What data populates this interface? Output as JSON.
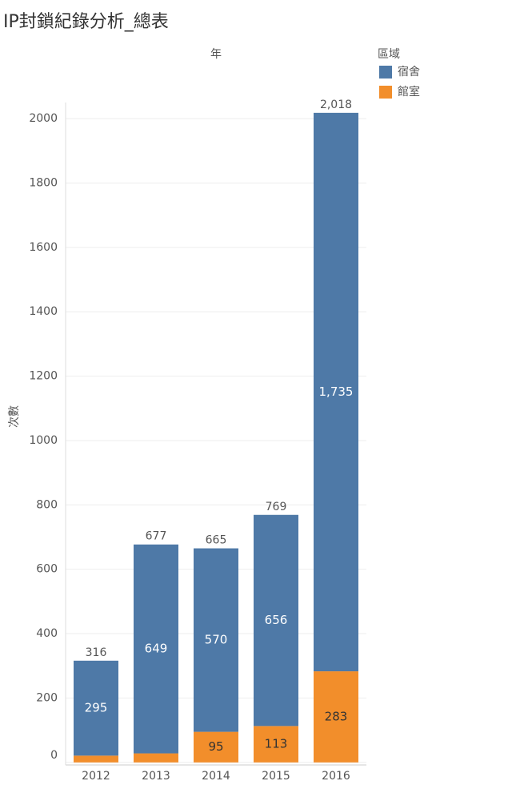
{
  "chart_data": {
    "type": "stacked-bar",
    "title": "IP封鎖紀錄分析_總表",
    "x_header": "年",
    "y_label": "次數",
    "legend_title": "區域",
    "categories": [
      "2012",
      "2013",
      "2014",
      "2015",
      "2016"
    ],
    "series": [
      {
        "name": "館室",
        "color": "#f28e2b",
        "values": [
          21,
          28,
          95,
          113,
          283
        ],
        "value_labels": [
          null,
          null,
          "95",
          "113",
          "283"
        ]
      },
      {
        "name": "宿舍",
        "color": "#4e79a7",
        "values": [
          295,
          649,
          570,
          656,
          1735
        ],
        "value_labels": [
          "295",
          "649",
          "570",
          "656",
          "1,735"
        ]
      }
    ],
    "totals": [
      316,
      677,
      665,
      769,
      2018
    ],
    "total_labels": [
      "316",
      "677",
      "665",
      "769",
      "2,018"
    ],
    "ylim": [
      -8,
      2050
    ],
    "yticks": [
      0,
      200,
      400,
      600,
      800,
      1000,
      1200,
      1400,
      1600,
      1800,
      2000
    ],
    "grid": true
  }
}
